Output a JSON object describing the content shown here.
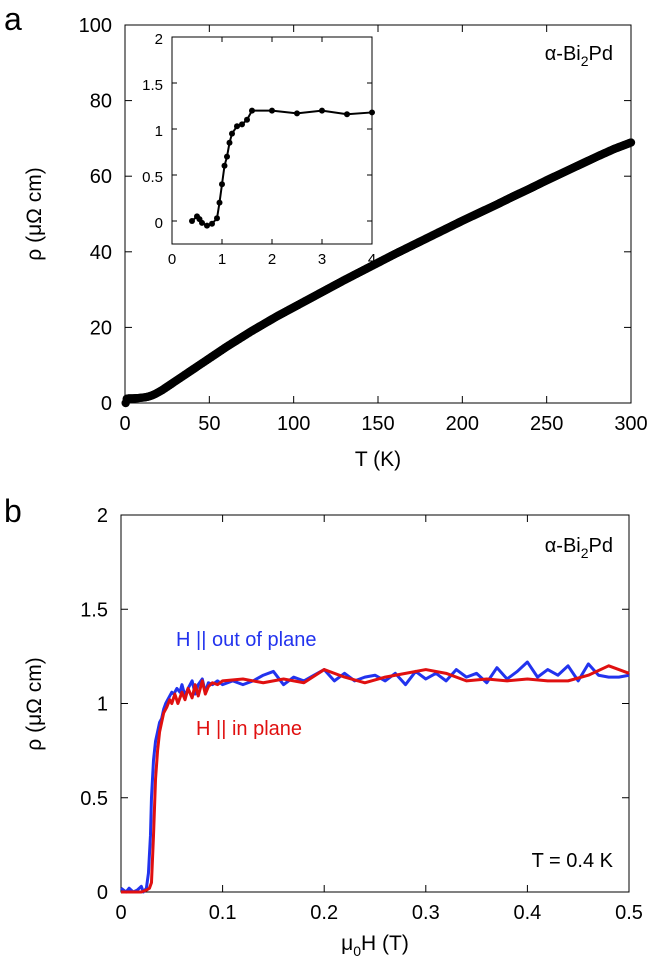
{
  "chart_data": [
    {
      "panel": "a",
      "type": "scatter",
      "xlabel": "T (K)",
      "ylabel": "ρ (μΩ cm)",
      "xlim": [
        0,
        300
      ],
      "ylim": [
        0,
        100
      ],
      "xticks": [
        "0",
        "50",
        "100",
        "150",
        "200",
        "250",
        "300"
      ],
      "yticks": [
        "0",
        "20",
        "40",
        "60",
        "80",
        "100"
      ],
      "annotation": {
        "prefix": "α-Bi",
        "sub": "2",
        "suffix": "Pd"
      },
      "series": [
        {
          "name": "rho_vs_T",
          "color": "#000000",
          "x": [
            0.4,
            1,
            2,
            3,
            4,
            5,
            6,
            8,
            10,
            12,
            14,
            16,
            18,
            20,
            22,
            24,
            26,
            28,
            30,
            32,
            34,
            36,
            38,
            40,
            42,
            44,
            46,
            48,
            50,
            55,
            60,
            65,
            70,
            75,
            80,
            85,
            90,
            95,
            100,
            110,
            120,
            130,
            140,
            150,
            160,
            170,
            180,
            190,
            200,
            210,
            220,
            230,
            240,
            250,
            260,
            270,
            280,
            290,
            300
          ],
          "y": [
            0,
            1.1,
            1.2,
            1.2,
            1.2,
            1.2,
            1.25,
            1.3,
            1.4,
            1.5,
            1.7,
            2.0,
            2.4,
            2.9,
            3.4,
            4.0,
            4.6,
            5.2,
            5.8,
            6.4,
            7.0,
            7.6,
            8.2,
            8.8,
            9.4,
            10.0,
            10.6,
            11.2,
            11.8,
            13.3,
            14.8,
            16.2,
            17.6,
            19.0,
            20.3,
            21.6,
            22.9,
            24.1,
            25.3,
            27.7,
            30.1,
            32.5,
            34.8,
            37.1,
            39.4,
            41.6,
            43.8,
            46.0,
            48.2,
            50.3,
            52.4,
            54.6,
            56.7,
            58.9,
            61.0,
            63.1,
            65.2,
            67.2,
            68.9
          ]
        }
      ],
      "inset": {
        "xlim": [
          0,
          4
        ],
        "ylim": [
          -0.25,
          2
        ],
        "xticks": [
          "0",
          "1",
          "2",
          "3",
          "4"
        ],
        "yticks": [
          "0",
          "0.5",
          "1",
          "1.5",
          "2"
        ],
        "x": [
          0.4,
          0.5,
          0.55,
          0.6,
          0.7,
          0.8,
          0.9,
          0.95,
          1.0,
          1.05,
          1.1,
          1.15,
          1.2,
          1.3,
          1.4,
          1.5,
          1.6,
          2.0,
          2.5,
          3.0,
          3.5,
          4.0
        ],
        "y": [
          0.0,
          0.05,
          0.02,
          -0.02,
          -0.05,
          -0.03,
          0.03,
          0.2,
          0.4,
          0.6,
          0.7,
          0.85,
          0.95,
          1.03,
          1.05,
          1.1,
          1.2,
          1.2,
          1.17,
          1.2,
          1.16,
          1.18
        ]
      }
    },
    {
      "panel": "b",
      "type": "line",
      "xlabel_main": "μ",
      "xlabel_sub": "0",
      "xlabel_rest": "H (T)",
      "ylabel": "ρ (μΩ cm)",
      "xlim": [
        0,
        0.5
      ],
      "ylim": [
        0,
        2
      ],
      "xticks": [
        "0",
        "0.1",
        "0.2",
        "0.3",
        "0.4",
        "0.5"
      ],
      "yticks": [
        "0",
        "0.5",
        "1",
        "1.5",
        "2"
      ],
      "annotation": {
        "prefix": "α-Bi",
        "sub": "2",
        "suffix": "Pd"
      },
      "temperature_label": "T = 0.4 K",
      "series": [
        {
          "name": "H || out of plane",
          "color": "#2233ee",
          "x": [
            0,
            0.005,
            0.008,
            0.012,
            0.016,
            0.02,
            0.022,
            0.025,
            0.027,
            0.029,
            0.03,
            0.032,
            0.034,
            0.036,
            0.038,
            0.04,
            0.042,
            0.044,
            0.046,
            0.048,
            0.05,
            0.052,
            0.055,
            0.058,
            0.06,
            0.063,
            0.066,
            0.07,
            0.073,
            0.076,
            0.08,
            0.083,
            0.086,
            0.09,
            0.095,
            0.1,
            0.11,
            0.12,
            0.13,
            0.14,
            0.15,
            0.16,
            0.17,
            0.18,
            0.19,
            0.2,
            0.21,
            0.22,
            0.23,
            0.24,
            0.25,
            0.26,
            0.27,
            0.28,
            0.29,
            0.3,
            0.31,
            0.32,
            0.33,
            0.34,
            0.35,
            0.36,
            0.37,
            0.38,
            0.39,
            0.4,
            0.41,
            0.42,
            0.43,
            0.44,
            0.45,
            0.46,
            0.47,
            0.48,
            0.49,
            0.5
          ],
          "y": [
            0.02,
            0.0,
            0.02,
            0.0,
            0.01,
            0.03,
            0.0,
            0.02,
            0.1,
            0.3,
            0.5,
            0.7,
            0.8,
            0.85,
            0.9,
            0.92,
            0.97,
            1.0,
            1.02,
            1.04,
            1.06,
            1.05,
            1.08,
            1.06,
            1.1,
            1.04,
            1.08,
            1.12,
            1.05,
            1.1,
            1.13,
            1.06,
            1.11,
            1.1,
            1.12,
            1.1,
            1.12,
            1.1,
            1.12,
            1.15,
            1.17,
            1.1,
            1.14,
            1.12,
            1.15,
            1.18,
            1.12,
            1.16,
            1.12,
            1.14,
            1.15,
            1.12,
            1.16,
            1.1,
            1.17,
            1.13,
            1.16,
            1.12,
            1.18,
            1.14,
            1.16,
            1.11,
            1.19,
            1.13,
            1.17,
            1.22,
            1.14,
            1.18,
            1.15,
            1.2,
            1.12,
            1.21,
            1.15,
            1.14,
            1.14,
            1.15
          ]
        },
        {
          "name": "H || in plane",
          "color": "#e01010",
          "x": [
            0,
            0.01,
            0.02,
            0.025,
            0.028,
            0.03,
            0.032,
            0.034,
            0.036,
            0.038,
            0.04,
            0.042,
            0.045,
            0.048,
            0.05,
            0.053,
            0.056,
            0.06,
            0.063,
            0.066,
            0.07,
            0.073,
            0.076,
            0.08,
            0.083,
            0.086,
            0.09,
            0.095,
            0.1,
            0.12,
            0.14,
            0.16,
            0.18,
            0.2,
            0.22,
            0.24,
            0.26,
            0.28,
            0.3,
            0.32,
            0.34,
            0.36,
            0.38,
            0.4,
            0.42,
            0.44,
            0.46,
            0.48,
            0.5
          ],
          "y": [
            0.0,
            0.0,
            0.0,
            0.01,
            0.02,
            0.05,
            0.3,
            0.6,
            0.75,
            0.85,
            0.9,
            0.95,
            0.98,
            1.02,
            1.0,
            1.05,
            1.0,
            1.06,
            1.02,
            1.08,
            1.03,
            1.1,
            1.04,
            1.12,
            1.05,
            1.09,
            1.11,
            1.1,
            1.12,
            1.13,
            1.11,
            1.13,
            1.11,
            1.18,
            1.14,
            1.11,
            1.14,
            1.16,
            1.18,
            1.16,
            1.12,
            1.13,
            1.12,
            1.13,
            1.12,
            1.12,
            1.15,
            1.2,
            1.16
          ]
        }
      ],
      "legend": [
        {
          "label": "H || out of plane",
          "color": "#2233ee"
        },
        {
          "label": "H || in plane",
          "color": "#e01010"
        }
      ]
    }
  ]
}
